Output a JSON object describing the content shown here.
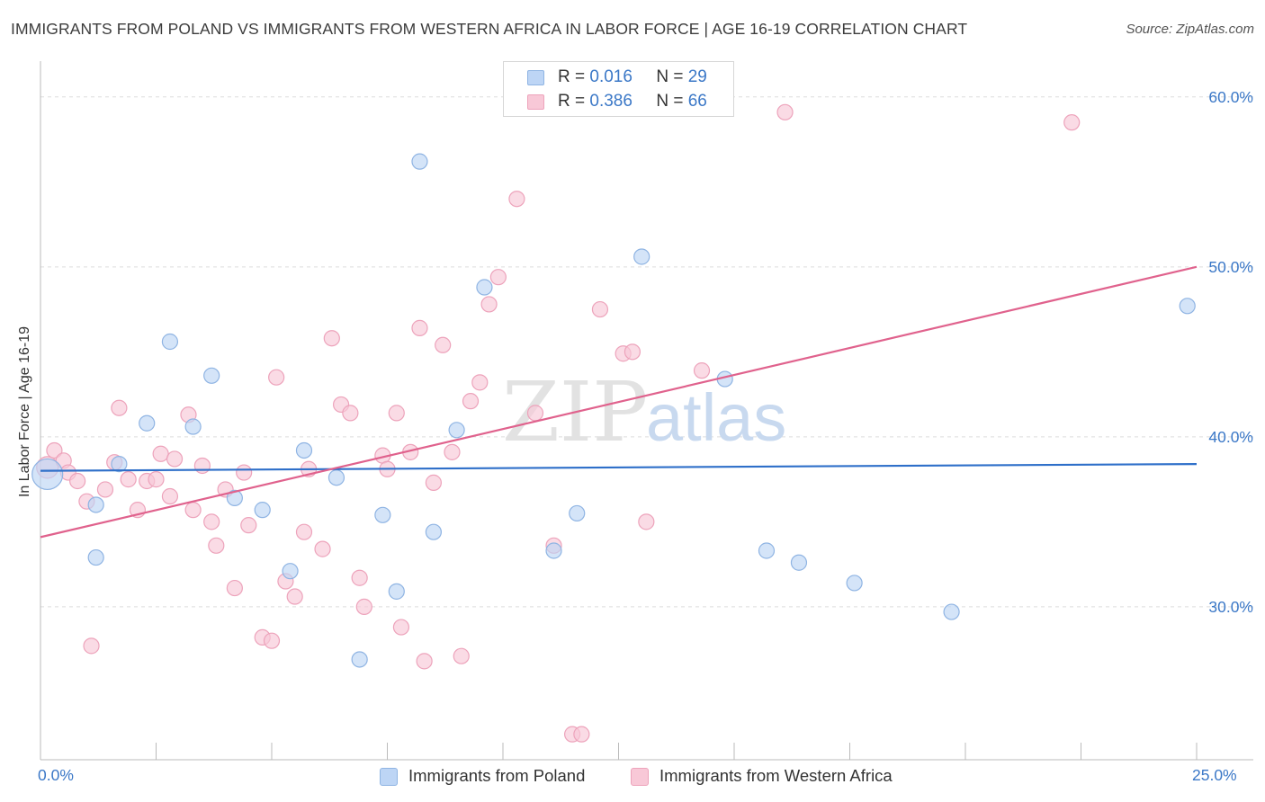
{
  "title": "IMMIGRANTS FROM POLAND VS IMMIGRANTS FROM WESTERN AFRICA IN LABOR FORCE | AGE 16-19 CORRELATION CHART",
  "source": "Source: ZipAtlas.com",
  "watermark": {
    "zip": "ZIP",
    "atlas": "atlas"
  },
  "legend": {
    "poland": {
      "r_label": "R =",
      "r_value": "0.016",
      "n_label": "N =",
      "n_value": "29"
    },
    "wafrica": {
      "r_label": "R =",
      "r_value": "0.386",
      "n_label": "N =",
      "n_value": "66"
    }
  },
  "colors": {
    "poland_fill": "#bdd5f5",
    "poland_stroke": "#8fb4e3",
    "poland_line": "#2e6fc9",
    "wafrica_fill": "#f8c8d7",
    "wafrica_stroke": "#eda3bb",
    "wafrica_line": "#e0628d",
    "tick_label": "#3b78c7",
    "grid": "#dddddd"
  },
  "chart_data": {
    "type": "scatter",
    "title": "IMMIGRANTS FROM POLAND VS IMMIGRANTS FROM WESTERN AFRICA IN LABOR FORCE | AGE 16-19 CORRELATION CHART",
    "xlabel": "",
    "ylabel": "In Labor Force | Age 16-19",
    "xlim": [
      0,
      25
    ],
    "ylim": [
      21,
      62
    ],
    "x_tick_labels": [
      "0.0%",
      "25.0%"
    ],
    "y_ticks": [
      30,
      40,
      50,
      60
    ],
    "y_tick_labels": [
      "30.0%",
      "40.0%",
      "50.0%",
      "60.0%"
    ],
    "grid": "horizontal dashed",
    "legend_position": "top-center",
    "series": [
      {
        "name": "Immigrants from Poland",
        "trend": [
          [
            0,
            38.0
          ],
          [
            25,
            38.4
          ]
        ],
        "points": [
          [
            0.15,
            37.8
          ],
          [
            1.2,
            36.0
          ],
          [
            1.2,
            32.9
          ],
          [
            1.7,
            38.4
          ],
          [
            2.3,
            40.8
          ],
          [
            2.8,
            45.6
          ],
          [
            3.3,
            40.6
          ],
          [
            3.7,
            43.6
          ],
          [
            4.2,
            36.4
          ],
          [
            4.8,
            35.7
          ],
          [
            5.4,
            32.1
          ],
          [
            5.7,
            39.2
          ],
          [
            6.4,
            37.6
          ],
          [
            6.9,
            26.9
          ],
          [
            7.4,
            35.4
          ],
          [
            7.7,
            30.9
          ],
          [
            8.2,
            56.2
          ],
          [
            8.5,
            34.4
          ],
          [
            9.0,
            40.4
          ],
          [
            9.6,
            48.8
          ],
          [
            11.1,
            33.3
          ],
          [
            11.6,
            35.5
          ],
          [
            13.0,
            50.6
          ],
          [
            14.8,
            43.4
          ],
          [
            15.7,
            33.3
          ],
          [
            16.4,
            32.6
          ],
          [
            17.6,
            31.4
          ],
          [
            19.7,
            29.7
          ],
          [
            24.8,
            47.7
          ]
        ]
      },
      {
        "name": "Immigrants from Western Africa",
        "trend": [
          [
            0,
            34.1
          ],
          [
            25,
            50.0
          ]
        ],
        "points": [
          [
            0.15,
            38.2
          ],
          [
            0.3,
            39.2
          ],
          [
            0.5,
            38.6
          ],
          [
            0.6,
            37.9
          ],
          [
            0.8,
            37.4
          ],
          [
            1.0,
            36.2
          ],
          [
            1.1,
            27.7
          ],
          [
            1.4,
            36.9
          ],
          [
            1.6,
            38.5
          ],
          [
            1.7,
            41.7
          ],
          [
            1.9,
            37.5
          ],
          [
            2.1,
            35.7
          ],
          [
            2.3,
            37.4
          ],
          [
            2.5,
            37.5
          ],
          [
            2.6,
            39.0
          ],
          [
            2.8,
            36.5
          ],
          [
            2.9,
            38.7
          ],
          [
            3.2,
            41.3
          ],
          [
            3.3,
            35.7
          ],
          [
            3.5,
            38.3
          ],
          [
            3.7,
            35.0
          ],
          [
            3.8,
            33.6
          ],
          [
            4.0,
            36.9
          ],
          [
            4.2,
            31.1
          ],
          [
            4.4,
            37.9
          ],
          [
            4.5,
            34.8
          ],
          [
            4.8,
            28.2
          ],
          [
            5.0,
            28.0
          ],
          [
            5.1,
            43.5
          ],
          [
            5.3,
            31.5
          ],
          [
            5.5,
            30.6
          ],
          [
            5.7,
            34.4
          ],
          [
            5.8,
            38.1
          ],
          [
            6.1,
            33.4
          ],
          [
            6.3,
            45.8
          ],
          [
            6.5,
            41.9
          ],
          [
            6.7,
            41.4
          ],
          [
            6.9,
            31.7
          ],
          [
            7.0,
            30.0
          ],
          [
            7.4,
            38.9
          ],
          [
            7.5,
            38.1
          ],
          [
            7.7,
            41.4
          ],
          [
            7.8,
            28.8
          ],
          [
            8.0,
            39.1
          ],
          [
            8.2,
            46.4
          ],
          [
            8.3,
            26.8
          ],
          [
            8.5,
            37.3
          ],
          [
            8.7,
            45.4
          ],
          [
            8.9,
            39.1
          ],
          [
            9.1,
            27.1
          ],
          [
            9.3,
            42.1
          ],
          [
            9.5,
            43.2
          ],
          [
            9.7,
            47.8
          ],
          [
            9.9,
            49.4
          ],
          [
            10.3,
            54.0
          ],
          [
            10.7,
            41.4
          ],
          [
            11.1,
            33.6
          ],
          [
            11.5,
            22.5
          ],
          [
            11.7,
            22.5
          ],
          [
            12.1,
            47.5
          ],
          [
            12.6,
            44.9
          ],
          [
            12.8,
            45.0
          ],
          [
            13.1,
            35.0
          ],
          [
            14.3,
            43.9
          ],
          [
            16.1,
            59.1
          ],
          [
            22.3,
            58.5
          ]
        ]
      }
    ]
  }
}
